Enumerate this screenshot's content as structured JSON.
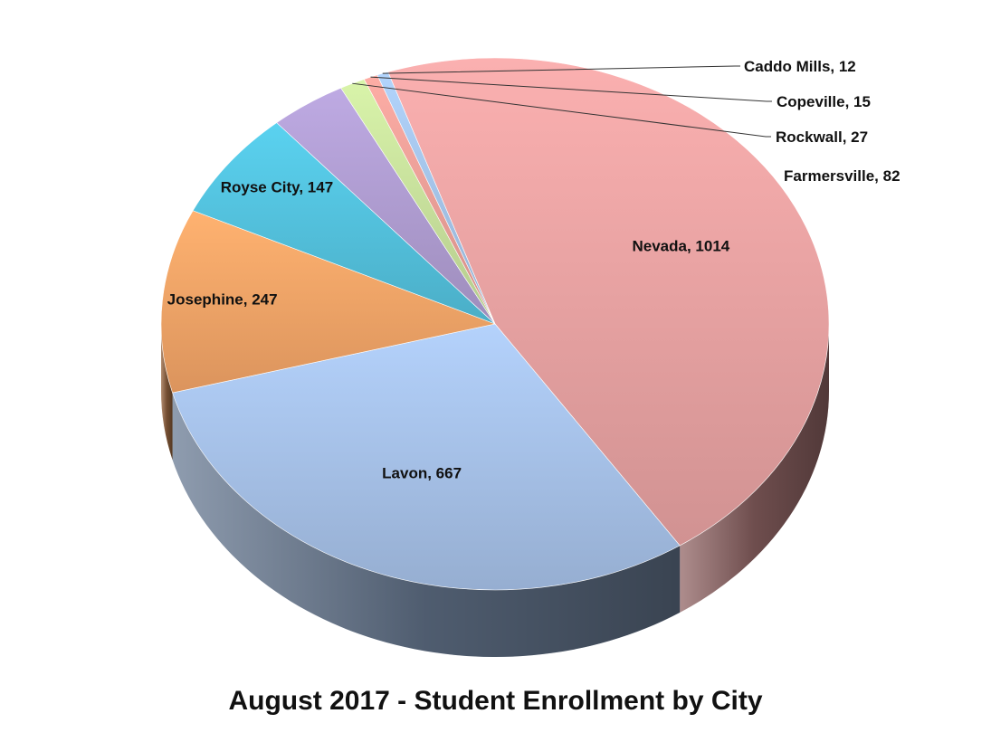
{
  "chart_data": {
    "type": "pie",
    "title": "August 2017 - Student Enrollment by City",
    "categories": [
      "Nevada",
      "Lavon",
      "Josephine",
      "Royse City",
      "Farmersville",
      "Rockwall",
      "Copeville",
      "Caddo Mills"
    ],
    "values": [
      1014,
      667,
      247,
      147,
      82,
      27,
      15,
      12
    ],
    "labels": [
      "Nevada, 1014",
      "Lavon, 667",
      "Josephine, 247",
      "Royse City, 147",
      "Farmersville, 82",
      "Rockwall, 27",
      "Copeville, 15",
      "Caddo Mills, 12"
    ],
    "colors": [
      "#eda6a6",
      "#aac6ee",
      "#f9a86a",
      "#55c6e2",
      "#b3a0d6",
      "#cde6a0",
      "#f0a39c",
      "#a8c8ee"
    ],
    "style": "3d-pie",
    "legend": "none",
    "data_labels": "outside-or-inside"
  }
}
